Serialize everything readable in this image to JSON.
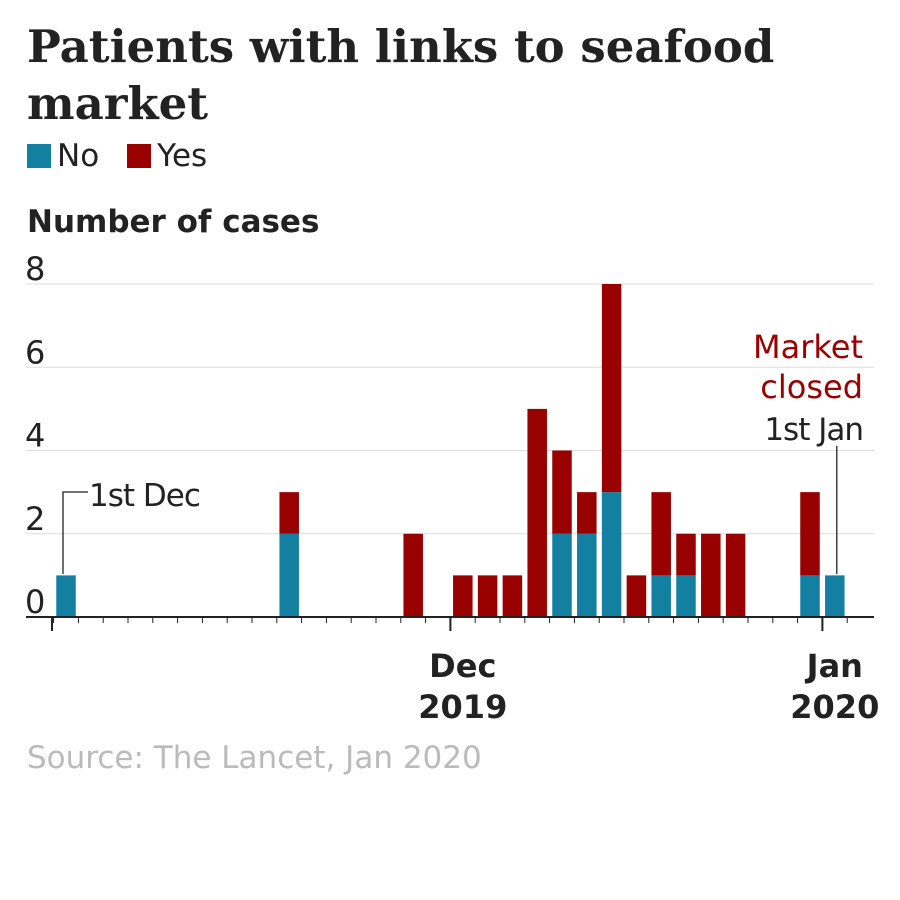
{
  "title": "Patients with links to seafood market",
  "legend": [
    {
      "label": "No",
      "color": "#1380a1"
    },
    {
      "label": "Yes",
      "color": "#990000"
    }
  ],
  "source": "Source: The Lancet, Jan 2020",
  "chart_data": {
    "type": "bar",
    "stacked": true,
    "ylabel": "Number of cases",
    "ylim": [
      0,
      8
    ],
    "yticks": [
      0,
      2,
      4,
      6,
      8
    ],
    "grid": true,
    "legend_position": "top-left",
    "x_axis": {
      "unit": "day",
      "start": "2019-12-01",
      "end": "2020-01-02",
      "labels": [
        {
          "line1": "Dec",
          "line2": "2019",
          "date": "2019-12-17"
        },
        {
          "line1": "Jan",
          "line2": "2020",
          "date": "2020-01-01"
        }
      ]
    },
    "x": [
      "2019-12-01",
      "2019-12-10",
      "2019-12-15",
      "2019-12-17",
      "2019-12-18",
      "2019-12-19",
      "2019-12-20",
      "2019-12-21",
      "2019-12-22",
      "2019-12-23",
      "2019-12-24",
      "2019-12-25",
      "2019-12-26",
      "2019-12-27",
      "2019-12-28",
      "2019-12-31",
      "2020-01-01"
    ],
    "series": [
      {
        "name": "No",
        "color": "#1380a1",
        "values": [
          1,
          2,
          0,
          0,
          0,
          0,
          0,
          2,
          2,
          3,
          0,
          1,
          1,
          0,
          0,
          1,
          1
        ]
      },
      {
        "name": "Yes",
        "color": "#990000",
        "values": [
          0,
          1,
          2,
          1,
          1,
          1,
          5,
          2,
          1,
          5,
          1,
          2,
          1,
          2,
          2,
          2,
          0
        ]
      }
    ],
    "annotations": [
      {
        "id": "start",
        "label": "1st Dec",
        "date": "2019-12-01",
        "color": "#222222"
      },
      {
        "id": "market",
        "label_line1": "Market",
        "label_line2": "closed",
        "color": "#990000"
      },
      {
        "id": "end",
        "label": "1st Jan",
        "date": "2020-01-01",
        "color": "#222222"
      }
    ]
  }
}
